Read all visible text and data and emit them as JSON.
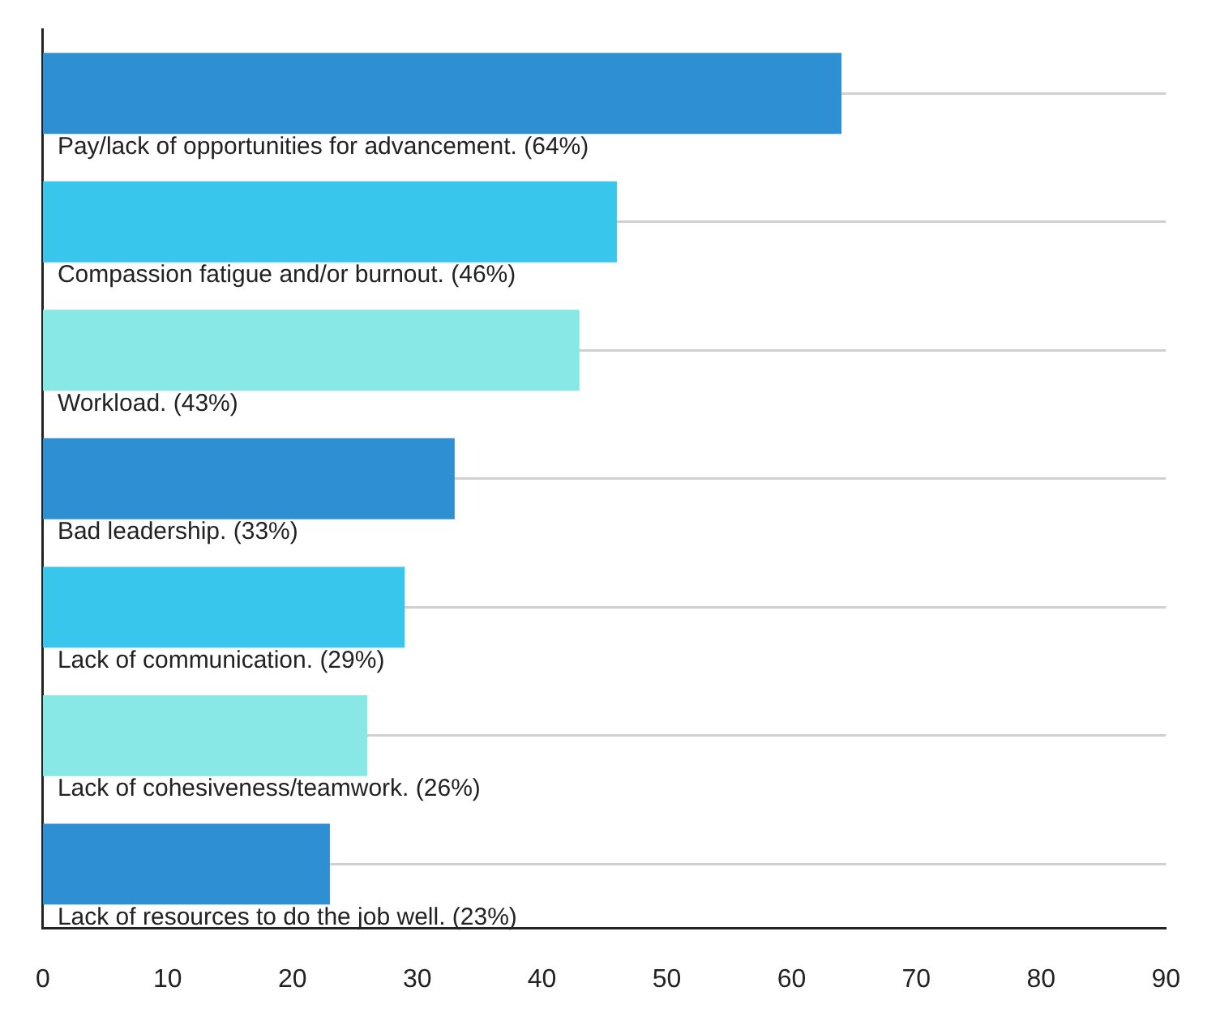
{
  "chart_data": {
    "type": "bar",
    "orientation": "horizontal",
    "categories": [
      "Pay/lack of opportunities for advancement. (64%)",
      "Compassion fatigue and/or burnout. (46%)",
      "Workload. (43%)",
      "Bad leadership. (33%)",
      "Lack of communication. (29%)",
      "Lack of cohesiveness/teamwork. (26%)",
      "Lack of resources to do the job well. (23%)"
    ],
    "values": [
      64,
      46,
      43,
      33,
      29,
      26,
      23
    ],
    "colors": [
      "#2e8fd3",
      "#38c6ed",
      "#88e8e6",
      "#2e8fd3",
      "#38c6ed",
      "#88e8e6",
      "#2e8fd3"
    ],
    "xlim": [
      0,
      90
    ],
    "xticks": [
      0,
      10,
      20,
      30,
      40,
      50,
      60,
      70,
      80,
      90
    ],
    "grid": "y"
  }
}
